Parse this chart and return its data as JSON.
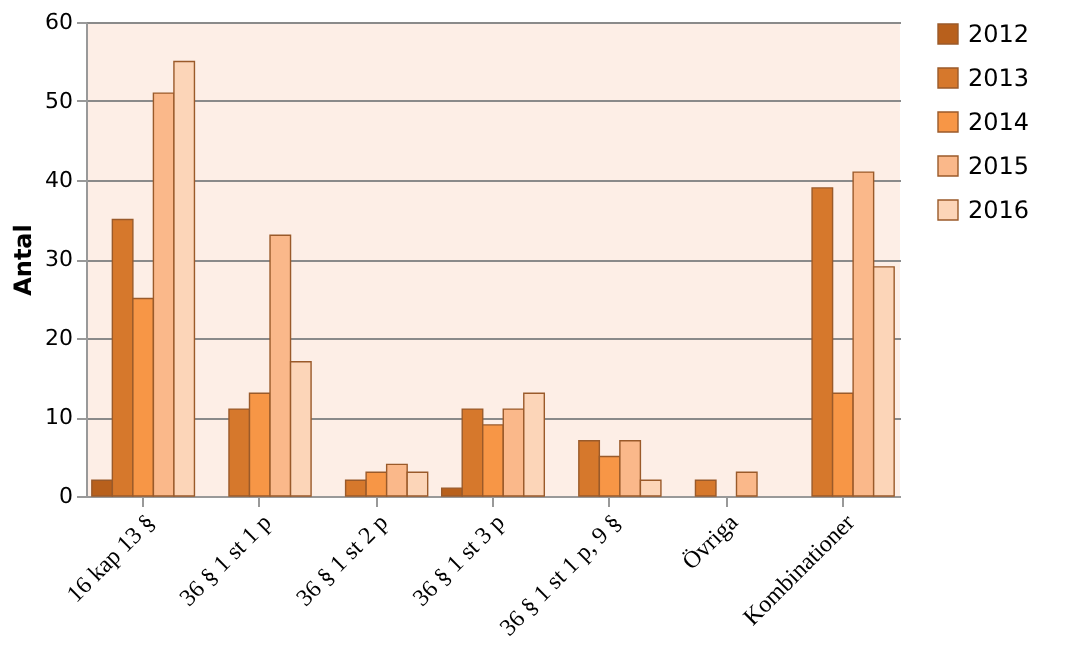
{
  "chart_data": {
    "type": "bar",
    "ylabel": "Antal",
    "categories": [
      "16 kap 13 §",
      "36 § 1 st 1 p",
      "36 § 1 st 2 p",
      "36 § 1 st 3 p",
      "36 § 1 st 1 p, 9 §",
      "Övriga",
      "Kombinationer"
    ],
    "series": [
      {
        "name": "2012",
        "color": "#b8601c",
        "values": [
          2,
          0,
          0,
          1,
          0,
          0,
          0
        ]
      },
      {
        "name": "2013",
        "color": "#d6782c",
        "values": [
          35,
          11,
          2,
          11,
          7,
          2,
          39
        ]
      },
      {
        "name": "2014",
        "color": "#f79646",
        "values": [
          25,
          13,
          3,
          9,
          5,
          0,
          13
        ]
      },
      {
        "name": "2015",
        "color": "#fab88a",
        "values": [
          51,
          33,
          4,
          11,
          7,
          3,
          41
        ]
      },
      {
        "name": "2016",
        "color": "#fcd5b8",
        "values": [
          55,
          17,
          3,
          13,
          2,
          0,
          29
        ]
      }
    ],
    "ylim": [
      0,
      60
    ],
    "yticks": [
      0,
      10,
      20,
      30,
      40,
      50,
      60
    ],
    "grid": "y",
    "legend": "right"
  }
}
